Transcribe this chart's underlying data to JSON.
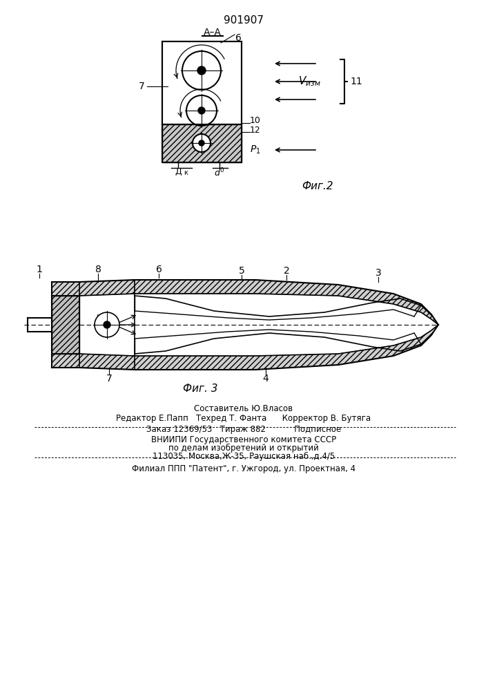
{
  "patent_number": "901907",
  "bg_color": "#ffffff",
  "footer_lines": [
    "Составитель Ю.Власов",
    "Редактор Е.Папп   Техред Т. Фанта      Корректор В. Бутяга",
    "Заказ 12369/53   Тираж 882           Подписное",
    "ВНИИПИ Государственного комитета СССР",
    "по делам изобретений и открытий",
    "113035, Москва,Ж-35, Раушская наб.,д.4/5",
    "Филиал ППП \"Патент\", г. Ужгород, ул. Проектная, 4"
  ]
}
